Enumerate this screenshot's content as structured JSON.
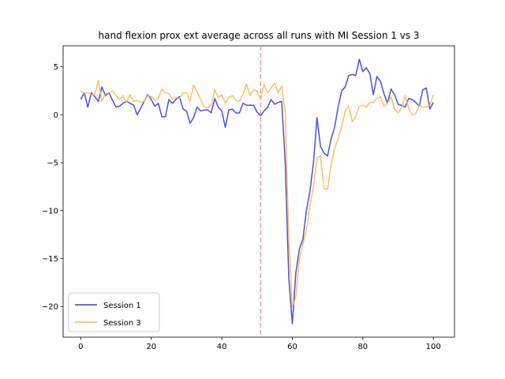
{
  "chart_data": {
    "type": "line",
    "title": "hand flexion prox ext average across all runs with MI Session 1 vs 3",
    "xlabel": "",
    "ylabel": "",
    "xlim": [
      -5,
      106
    ],
    "ylim": [
      -23.2,
      7.2
    ],
    "xticks": [
      0,
      20,
      40,
      60,
      80,
      100
    ],
    "yticks": [
      5,
      0,
      -5,
      -10,
      -15,
      -20
    ],
    "grid": false,
    "legend_position": "lower-left",
    "vline": {
      "x": 51,
      "color": "#ff9999",
      "style": "dashed"
    },
    "series": [
      {
        "name": "Session 1",
        "color": "#3a3ae6",
        "values": [
          1.6,
          2.3,
          0.8,
          2.3,
          1.9,
          1.4,
          2.9,
          2.0,
          2.3,
          1.5,
          0.8,
          0.9,
          1.2,
          1.4,
          1.2,
          1.0,
          0.0,
          0.7,
          1.4,
          2.1,
          1.6,
          0.9,
          1.2,
          -0.2,
          -0.2,
          1.6,
          1.2,
          1.6,
          1.9,
          0.6,
          0.4,
          -0.9,
          -0.3,
          0.8,
          0.4,
          0.5,
          0.5,
          0.2,
          1.7,
          0.8,
          0.4,
          -1.3,
          0.5,
          0.6,
          0.2,
          0.2,
          1.2,
          1.0,
          1.0,
          1.0,
          0.3,
          -0.1,
          0.4,
          0.8,
          1.6,
          1.1,
          1.3,
          1.4,
          -5.0,
          -17.0,
          -21.8,
          -16.5,
          -14.0,
          -13.0,
          -10.0,
          -8.0,
          -5.0,
          -0.3,
          -3.3,
          -4.0,
          -4.3,
          -2.5,
          -1.3,
          0.8,
          2.5,
          2.9,
          4.1,
          4.2,
          4.1,
          5.8,
          4.5,
          4.9,
          4.3,
          2.1,
          4.0,
          3.5,
          2.2,
          1.2,
          2.7,
          2.1,
          1.1,
          1.0,
          0.8,
          1.7,
          1.6,
          1.3,
          0.9,
          2.6,
          2.8,
          0.6,
          1.3
        ]
      },
      {
        "name": "Session 3",
        "color": "#ffb84d",
        "values": [
          2.5,
          2.2,
          2.3,
          2.1,
          2.1,
          3.6,
          1.4,
          2.2,
          2.3,
          2.5,
          2.0,
          1.6,
          2.0,
          1.3,
          2.1,
          1.4,
          1.5,
          1.3,
          1.4,
          2.0,
          1.9,
          1.5,
          1.7,
          2.7,
          2.3,
          2.2,
          1.6,
          1.8,
          1.7,
          2.3,
          2.3,
          1.4,
          3.1,
          2.4,
          1.6,
          0.8,
          0.7,
          1.0,
          2.6,
          1.8,
          2.1,
          1.2,
          1.8,
          2.0,
          1.5,
          1.4,
          2.1,
          3.2,
          2.0,
          2.6,
          2.5,
          1.6,
          3.2,
          2.3,
          2.8,
          3.3,
          2.3,
          3.0,
          0.2,
          -13.0,
          -20.0,
          -19.0,
          -15.0,
          -13.5,
          -12.0,
          -9.5,
          -7.5,
          -4.5,
          -4.3,
          -7.7,
          -7.8,
          -5.2,
          -3.5,
          -2.5,
          -1.3,
          0.4,
          0.9,
          -0.7,
          -0.2,
          0.9,
          1.0,
          0.8,
          1.3,
          1.3,
          1.7,
          1.9,
          0.9,
          1.2,
          1.9,
          0.6,
          0.2,
          0.7,
          2.0,
          0.7,
          0.0,
          0.1,
          1.0,
          0.8,
          0.8,
          1.0,
          2.1
        ]
      }
    ]
  }
}
